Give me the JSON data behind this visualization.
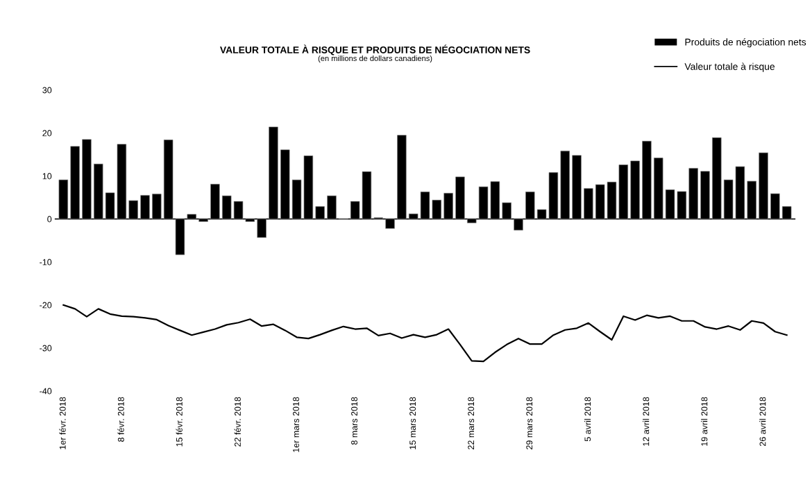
{
  "chart_data": {
    "type": "bar",
    "title": "VALEUR TOTALE À RISQUE ET PRODUITS DE NÉGOCIATION NETS",
    "subtitle": "(en millions de dollars canadiens)",
    "categories": [
      "1er févr. 2018",
      null,
      null,
      null,
      null,
      "8 févr. 2018",
      null,
      null,
      null,
      null,
      "15 févr. 2018",
      null,
      null,
      null,
      null,
      "22 févr. 2018",
      null,
      null,
      null,
      null,
      "1er mars 2018",
      null,
      null,
      null,
      null,
      "8 mars 2018",
      null,
      null,
      null,
      null,
      "15 mars 2018",
      null,
      null,
      null,
      null,
      "22 mars 2018",
      null,
      null,
      null,
      null,
      "29 mars 2018",
      null,
      null,
      null,
      null,
      "5 avril 2018",
      null,
      null,
      null,
      null,
      "12 avril 2018",
      null,
      null,
      null,
      null,
      "19 avril 2018",
      null,
      null,
      null,
      null,
      "26 avril 2018",
      null,
      null
    ],
    "series": [
      {
        "name": "Produits de négociation nets",
        "color": "#000000",
        "values": [
          9.1,
          16.9,
          18.5,
          12.8,
          6.1,
          17.4,
          4.3,
          5.5,
          5.8,
          18.4,
          -8.3,
          1.1,
          -0.6,
          8.1,
          5.4,
          4.1,
          -0.6,
          -4.3,
          21.4,
          16.1,
          9.1,
          14.7,
          2.9,
          5.4,
          0.1,
          4.1,
          11.0,
          0.3,
          -2.2,
          19.5,
          1.2,
          6.3,
          4.4,
          6.0,
          9.8,
          -0.9,
          7.5,
          8.7,
          3.8,
          -2.6,
          6.3,
          2.2,
          10.8,
          15.8,
          14.8,
          7.1,
          8.0,
          8.6,
          12.6,
          13.5,
          18.1,
          14.2,
          6.8,
          6.4,
          11.8,
          11.1,
          18.9,
          9.1,
          12.2,
          8.8,
          15.4,
          5.9,
          2.9
        ]
      },
      {
        "name": "Valeur totale à risque",
        "type": "line",
        "color": "#000000",
        "values": [
          -20.0,
          -20.9,
          -22.7,
          -20.9,
          -22.1,
          -22.6,
          -22.7,
          -23.0,
          -23.4,
          -24.8,
          -25.9,
          -27.0,
          -26.3,
          -25.6,
          -24.6,
          -24.1,
          -23.3,
          -24.9,
          -24.5,
          -25.9,
          -27.5,
          -27.8,
          -26.9,
          -25.9,
          -25.0,
          -25.6,
          -25.4,
          -27.1,
          -26.6,
          -27.7,
          -26.9,
          -27.5,
          -26.9,
          -25.6,
          -29.2,
          -33.0,
          -33.1,
          -31.0,
          -29.2,
          -27.8,
          -29.1,
          -29.1,
          -27.0,
          -25.8,
          -25.4,
          -24.2,
          -26.2,
          -28.1,
          -22.6,
          -23.5,
          -22.4,
          -23.0,
          -22.6,
          -23.7,
          -23.7,
          -25.1,
          -25.6,
          -24.9,
          -25.8,
          -23.7,
          -24.2,
          -26.2,
          -27.0
        ]
      }
    ],
    "ylim": [
      -40,
      30
    ],
    "yticks": [
      -40,
      -30,
      -20,
      -10,
      0,
      10,
      20,
      30
    ],
    "legend": "top right"
  }
}
